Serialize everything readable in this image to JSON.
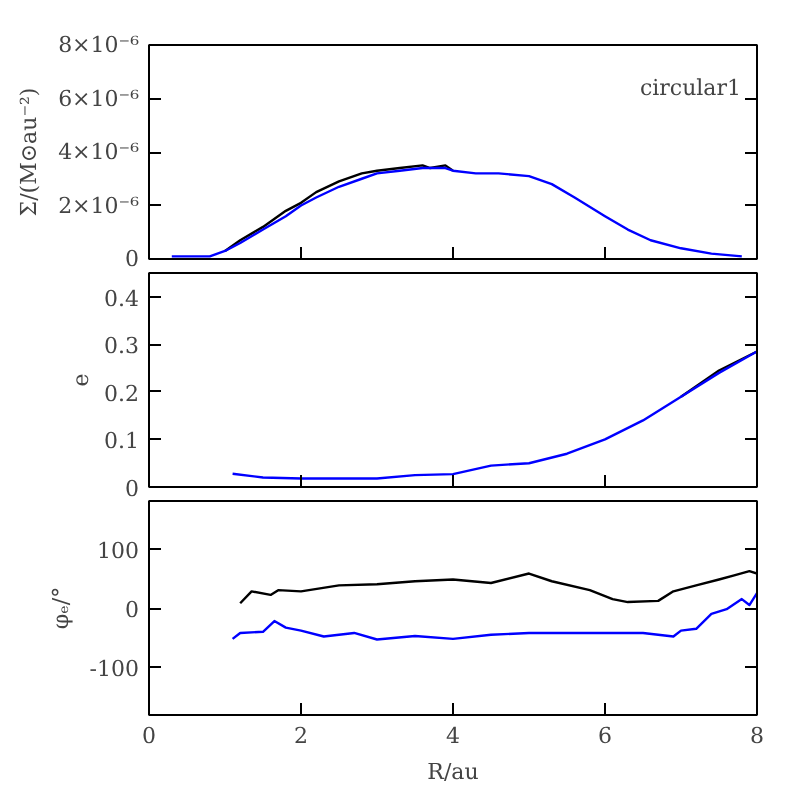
{
  "chart_data": [
    {
      "type": "line",
      "ylabel": "Σ/(M⊙au⁻²)",
      "xlim": [
        0,
        8
      ],
      "ylim": [
        0,
        8e-06
      ],
      "xticks": [
        0,
        2,
        4,
        6,
        8
      ],
      "yticks": [
        0,
        {
          "value": 2e-06,
          "label": "2×10⁻⁶"
        },
        {
          "value": 4e-06,
          "label": "4×10⁻⁶"
        },
        {
          "value": 6e-06,
          "label": "6×10⁻⁶"
        },
        {
          "value": 8e-06,
          "label": "8×10⁻⁶"
        }
      ],
      "tick_labels": "y",
      "grid": false,
      "annotations": [
        "circular1"
      ],
      "series": [
        {
          "color": "#000000",
          "x": [
            1.0,
            1.2,
            1.5,
            1.8,
            2.0,
            2.2,
            2.5,
            2.8,
            3.0,
            3.3,
            3.6,
            3.7,
            3.9,
            4.0
          ],
          "values": [
            3e-07,
            7e-07,
            1.2e-06,
            1.8e-06,
            2.1e-06,
            2.5e-06,
            2.9e-06,
            3.2e-06,
            3.3e-06,
            3.4e-06,
            3.5e-06,
            3.4e-06,
            3.5e-06,
            3.3e-06
          ]
        },
        {
          "color": "#0000ff",
          "x": [
            0.3,
            0.8,
            1.0,
            1.2,
            1.5,
            1.8,
            2.0,
            2.2,
            2.5,
            2.8,
            3.0,
            3.3,
            3.6,
            3.7,
            3.9,
            4.0,
            4.3,
            4.6,
            5.0,
            5.3,
            5.6,
            6.0,
            6.3,
            6.6,
            7.0,
            7.4,
            7.8
          ],
          "values": [
            1e-07,
            1e-07,
            3e-07,
            6e-07,
            1.1e-06,
            1.6e-06,
            2e-06,
            2.3e-06,
            2.7e-06,
            3e-06,
            3.2e-06,
            3.3e-06,
            3.4e-06,
            3.4e-06,
            3.4e-06,
            3.3e-06,
            3.2e-06,
            3.2e-06,
            3.1e-06,
            2.8e-06,
            2.3e-06,
            1.6e-06,
            1.1e-06,
            7e-07,
            4e-07,
            2e-07,
            1e-07
          ]
        }
      ]
    },
    {
      "type": "line",
      "ylabel": "e",
      "xlim": [
        0,
        8
      ],
      "ylim": [
        0,
        0.45
      ],
      "xticks": [
        0,
        2,
        4,
        6,
        8
      ],
      "yticks": [
        0,
        0.1,
        0.2,
        0.3,
        0.4
      ],
      "tick_labels": "y",
      "grid": false,
      "series": [
        {
          "color": "#000000",
          "x": [
            7.0,
            7.5,
            8.0
          ],
          "values": [
            0.19,
            0.245,
            0.285
          ]
        },
        {
          "color": "#0000ff",
          "x": [
            1.1,
            1.5,
            2.0,
            3.0,
            3.5,
            4.0,
            4.5,
            5.0,
            5.5,
            6.0,
            6.5,
            7.0,
            7.5,
            8.0
          ],
          "values": [
            0.028,
            0.02,
            0.018,
            0.018,
            0.025,
            0.027,
            0.045,
            0.05,
            0.07,
            0.1,
            0.14,
            0.19,
            0.24,
            0.285
          ]
        }
      ]
    },
    {
      "type": "line",
      "ylabel": "φₑ/°",
      "xlabel": "R/au",
      "xlim": [
        0,
        8
      ],
      "ylim": [
        -180,
        180
      ],
      "xticks": [
        0,
        2,
        4,
        6,
        8
      ],
      "yticks": [
        -100,
        0,
        100
      ],
      "grid": false,
      "series": [
        {
          "color": "#000000",
          "x": [
            1.2,
            1.35,
            1.6,
            1.7,
            2.0,
            2.5,
            3.0,
            3.5,
            4.0,
            4.5,
            5.0,
            5.3,
            5.8,
            6.1,
            6.3,
            6.7,
            6.9,
            7.2,
            7.5,
            7.7,
            7.9,
            8.0
          ],
          "values": [
            8,
            28,
            22,
            30,
            28,
            38,
            40,
            45,
            48,
            42,
            58,
            45,
            30,
            15,
            10,
            12,
            28,
            38,
            48,
            55,
            62,
            58
          ]
        },
        {
          "color": "#0000ff",
          "x": [
            1.1,
            1.2,
            1.5,
            1.65,
            1.8,
            2.0,
            2.3,
            2.7,
            3.0,
            3.5,
            4.0,
            4.5,
            5.0,
            6.0,
            6.5,
            6.9,
            7.0,
            7.2,
            7.4,
            7.6,
            7.8,
            7.9,
            8.0
          ],
          "values": [
            -52,
            -42,
            -40,
            -22,
            -33,
            -38,
            -48,
            -42,
            -53,
            -47,
            -52,
            -45,
            -42,
            -42,
            -42,
            -48,
            -38,
            -35,
            -10,
            -2,
            15,
            5,
            25
          ]
        }
      ]
    }
  ]
}
